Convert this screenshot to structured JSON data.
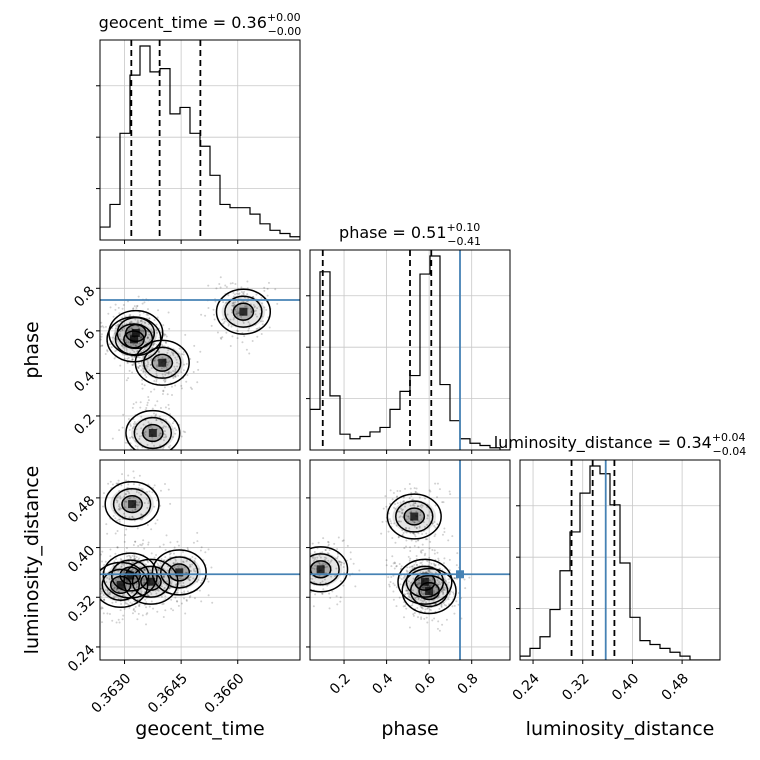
{
  "chart_data": {
    "type": "corner",
    "parameters": [
      "geocent_time",
      "phase",
      "luminosity_distance"
    ],
    "truths": {
      "geocent_time": null,
      "phase": 0.745,
      "luminosity_distance": 0.357
    },
    "titles": [
      {
        "param": "geocent_time",
        "name": "geocent_time",
        "median": "0.36",
        "plus": "+0.00",
        "minus": "−0.00"
      },
      {
        "param": "phase",
        "name": "phase",
        "median": "0.51",
        "plus": "+0.10",
        "minus": "−0.41"
      },
      {
        "param": "luminosity_distance",
        "name": "luminosity_distance",
        "median": "0.34",
        "plus": "+0.04",
        "minus": "−0.04"
      }
    ],
    "axes": {
      "geocent_time": {
        "range": [
          0.36235,
          0.36765
        ],
        "ticks": [
          0.363,
          0.3645,
          0.366
        ],
        "tick_labels": [
          "0.3630",
          "0.3645",
          "0.3660"
        ],
        "label": "geocent_time"
      },
      "phase": {
        "range": [
          0.04,
          0.98
        ],
        "ticks": [
          0.2,
          0.4,
          0.6,
          0.8
        ],
        "tick_labels": [
          "0.2",
          "0.4",
          "0.6",
          "0.8"
        ],
        "label": "phase"
      },
      "luminosity_distance": {
        "range": [
          0.219,
          0.541
        ],
        "ticks": [
          0.24,
          0.32,
          0.4,
          0.48
        ],
        "tick_labels": [
          "0.24",
          "0.32",
          "0.40",
          "0.48"
        ],
        "label": "luminosity_distance"
      }
    },
    "histograms": {
      "geocent_time": {
        "bin_edges": [
          0.36235,
          0.362615,
          0.36288,
          0.363145,
          0.36341,
          0.363675,
          0.36394,
          0.364205,
          0.36447,
          0.364735,
          0.365,
          0.365265,
          0.36553,
          0.365795,
          0.36606,
          0.366325,
          0.36659,
          0.366855,
          0.36712,
          0.367385,
          0.36765
        ],
        "counts": [
          4,
          11,
          33,
          51,
          60,
          52,
          53,
          39,
          41,
          33,
          29,
          20,
          11,
          10,
          10,
          8,
          5,
          3,
          2,
          1
        ],
        "quantiles": [
          0.36318,
          0.36393,
          0.36501
        ]
      },
      "phase": {
        "bin_edges": [
          0.04,
          0.087,
          0.134,
          0.181,
          0.228,
          0.275,
          0.322,
          0.369,
          0.416,
          0.463,
          0.51,
          0.557,
          0.604,
          0.651,
          0.698,
          0.745,
          0.792,
          0.839,
          0.886,
          0.933,
          0.98
        ],
        "counts": [
          18,
          79,
          24,
          7,
          5,
          6,
          8,
          10,
          18,
          26,
          33,
          78,
          86,
          29,
          13,
          5,
          3,
          2,
          1,
          0
        ],
        "quantiles": [
          0.1,
          0.51,
          0.61
        ]
      },
      "luminosity_distance": {
        "bin_edges": [
          0.219,
          0.2351,
          0.2512,
          0.2673,
          0.2834,
          0.2995,
          0.3156,
          0.3317,
          0.3478,
          0.3639,
          0.38,
          0.3961,
          0.4122,
          0.4283,
          0.4444,
          0.4605,
          0.4766,
          0.4927,
          0.5088,
          0.5249,
          0.541
        ],
        "counts": [
          1,
          3,
          6,
          13,
          23,
          33,
          43,
          50,
          48,
          40,
          25,
          11,
          5,
          4,
          3,
          2,
          1,
          0,
          0,
          0
        ],
        "quantiles": [
          0.302,
          0.336,
          0.371
        ]
      }
    },
    "density_peaks": [
      {
        "x": "geocent_time",
        "y": "phase",
        "points": [
          [
            0.36325,
            0.56
          ],
          [
            0.3633,
            0.59
          ],
          [
            0.36375,
            0.12
          ],
          [
            0.364,
            0.45
          ],
          [
            0.36615,
            0.69
          ]
        ]
      },
      {
        "x": "geocent_time",
        "y": "luminosity_distance",
        "points": [
          [
            0.3629,
            0.34
          ],
          [
            0.36315,
            0.355
          ],
          [
            0.3637,
            0.345
          ],
          [
            0.36445,
            0.36
          ],
          [
            0.3632,
            0.47
          ]
        ]
      },
      {
        "x": "phase",
        "y": "luminosity_distance",
        "points": [
          [
            0.09,
            0.365
          ],
          [
            0.58,
            0.345
          ],
          [
            0.6,
            0.33
          ],
          [
            0.53,
            0.45
          ]
        ]
      }
    ],
    "grid": true,
    "colors": {
      "truth": "#4682b4",
      "contour": "#000000",
      "density": "#000000"
    }
  }
}
